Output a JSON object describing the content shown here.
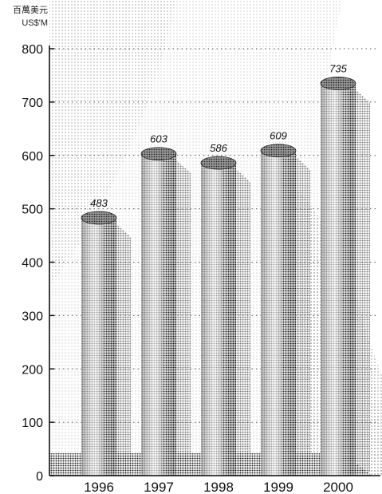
{
  "chart_data": {
    "type": "bar",
    "title": "",
    "unit_label_zh": "百萬美元",
    "unit_label_en": "US$'M",
    "xlabel": "",
    "ylabel": "",
    "categories": [
      "1996",
      "1997",
      "1998",
      "1999",
      "2000"
    ],
    "values": [
      483,
      603,
      586,
      609,
      735
    ],
    "data_labels": [
      "483",
      "603",
      "586",
      "609",
      "735"
    ],
    "ylim": [
      0,
      800
    ],
    "yticks": [
      0,
      100,
      200,
      300,
      400,
      500,
      600,
      700,
      800
    ],
    "ytick_labels": [
      "0",
      "100",
      "200",
      "300",
      "400",
      "500",
      "600",
      "700",
      "800"
    ],
    "grid": "dotted horizontal",
    "legend": "none",
    "style": "3d cylinder bars, halftone",
    "colors": {
      "bar": "#2a2a2a",
      "grid": "#555555",
      "background": "#ffffff"
    }
  }
}
